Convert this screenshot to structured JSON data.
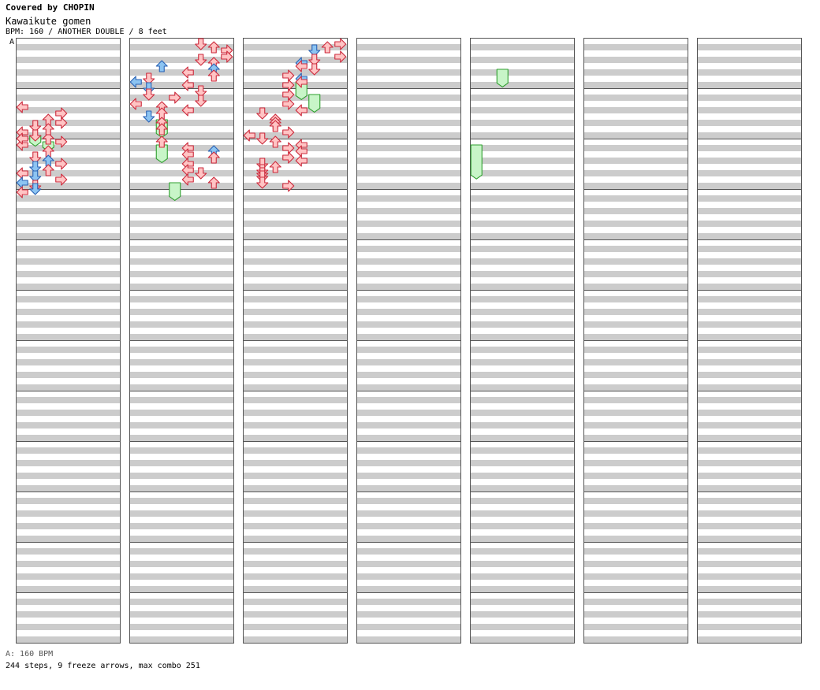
{
  "header": {
    "covered_by": "Covered by CHOPIN",
    "song_title": "Kawaikute gomen",
    "meta": "BPM: 160 / ANOTHER DOUBLE / 8 feet"
  },
  "bpm_marker": "A",
  "footer": {
    "bpm_legend": "A: 160 BPM",
    "stats": "244 steps, 9 freeze arrows, max combo 251"
  },
  "chart_data": {
    "type": "step-chart",
    "bpm": 160,
    "difficulty": "ANOTHER DOUBLE",
    "feet": 8,
    "lanes": [
      "left-1p",
      "down-1p",
      "up-1p",
      "right-1p",
      "left-2p",
      "down-2p",
      "up-2p",
      "right-2p"
    ],
    "columns": 7,
    "measures_per_column": 12,
    "beats_per_measure": 4,
    "steps": 244,
    "freeze_arrows": 9,
    "max_combo": 251,
    "notes": [
      [
        0,
        5,
        "left-1p",
        "r"
      ],
      [
        0,
        5.5,
        "right-1p",
        "r"
      ],
      [
        0,
        6,
        "up-1p",
        "r"
      ],
      [
        0,
        6.25,
        "right-1p",
        "r"
      ],
      [
        0,
        6.5,
        "down-1p",
        "r"
      ],
      [
        0,
        7.75,
        "right-1p",
        "r"
      ],
      [
        0,
        8,
        "left-1p",
        "r"
      ],
      [
        0,
        8.5,
        "up-1p",
        "r"
      ],
      [
        0,
        9,
        "down-1p",
        "r"
      ],
      [
        0,
        9.25,
        "up-1p",
        "b"
      ],
      [
        0,
        9.5,
        "right-1p",
        "r"
      ],
      [
        0,
        9.75,
        "down-1p",
        "b"
      ],
      [
        0,
        10,
        "up-1p",
        "r"
      ],
      [
        0,
        10.25,
        "left-1p",
        "r"
      ],
      [
        0,
        10.5,
        "down-1p",
        "b"
      ],
      [
        0,
        10.75,
        "right-1p",
        "r"
      ],
      [
        0,
        11,
        "left-1p",
        "b"
      ],
      [
        0,
        11.25,
        "down-1p",
        "r"
      ],
      [
        0,
        11.5,
        "down-1p",
        "b"
      ],
      [
        0,
        11.75,
        "left-1p",
        "r"
      ],
      [
        0,
        7,
        "left-1p",
        "r"
      ],
      [
        0,
        7.25,
        "down-1p",
        "r"
      ],
      [
        0,
        7.5,
        "up-1p",
        "r"
      ],
      [
        0,
        6.75,
        "up-1p",
        "r"
      ],
      [
        0,
        7.5,
        "left-1p",
        "r"
      ],
      [
        1,
        0,
        "down-2p",
        "r"
      ],
      [
        1,
        0.25,
        "up-2p",
        "r"
      ],
      [
        1,
        0.5,
        "right-2p",
        "r"
      ],
      [
        1,
        1,
        "right-2p",
        "r"
      ],
      [
        1,
        1.25,
        "down-2p",
        "r"
      ],
      [
        1,
        1.5,
        "up-2p",
        "r"
      ],
      [
        1,
        1.75,
        "up-1p",
        "b"
      ],
      [
        1,
        2,
        "up-2p",
        "b"
      ],
      [
        1,
        2.25,
        "left-2p",
        "r"
      ],
      [
        1,
        2.5,
        "up-2p",
        "r"
      ],
      [
        1,
        2.75,
        "down-1p",
        "r"
      ],
      [
        1,
        3,
        "left-1p",
        "b"
      ],
      [
        1,
        3.25,
        "left-2p",
        "r"
      ],
      [
        1,
        3.75,
        "down-2p",
        "r"
      ],
      [
        1,
        3.5,
        "down-1p",
        "b"
      ],
      [
        1,
        4,
        "down-1p",
        "r"
      ],
      [
        1,
        4.25,
        "right-1p",
        "r"
      ],
      [
        1,
        4.5,
        "down-2p",
        "r"
      ],
      [
        1,
        4.75,
        "left-1p",
        "r"
      ],
      [
        1,
        5,
        "up-1p",
        "r"
      ],
      [
        1,
        5.25,
        "left-2p",
        "r"
      ],
      [
        1,
        5.5,
        "up-1p",
        "r"
      ],
      [
        1,
        5.75,
        "down-1p",
        "b"
      ],
      [
        1,
        6.25,
        "up-1p",
        "r"
      ],
      [
        1,
        6.75,
        "up-1p",
        "r"
      ],
      [
        1,
        7.75,
        "up-1p",
        "r"
      ],
      [
        1,
        8.25,
        "left-2p",
        "r"
      ],
      [
        1,
        8.5,
        "up-2p",
        "b"
      ],
      [
        1,
        8.75,
        "left-2p",
        "r"
      ],
      [
        1,
        9,
        "up-2p",
        "r"
      ],
      [
        1,
        9.5,
        "left-2p",
        "r"
      ],
      [
        1,
        10,
        "left-2p",
        "r"
      ],
      [
        1,
        10.25,
        "down-2p",
        "r"
      ],
      [
        1,
        10.75,
        "left-2p",
        "r"
      ],
      [
        1,
        11,
        "up-2p",
        "r"
      ],
      [
        2,
        0,
        "right-2p",
        "r"
      ],
      [
        2,
        0.25,
        "up-2p",
        "r"
      ],
      [
        2,
        0.5,
        "down-2p",
        "b"
      ],
      [
        2,
        1,
        "right-2p",
        "r"
      ],
      [
        2,
        1.25,
        "down-2p",
        "r"
      ],
      [
        2,
        1.5,
        "left-2p",
        "b"
      ],
      [
        2,
        1.75,
        "left-2p",
        "r"
      ],
      [
        2,
        2,
        "down-2p",
        "r"
      ],
      [
        2,
        2.5,
        "right-1p",
        "r"
      ],
      [
        2,
        2.75,
        "left-2p",
        "b"
      ],
      [
        2,
        3,
        "left-2p",
        "r"
      ],
      [
        2,
        3.25,
        "right-1p",
        "r"
      ],
      [
        2,
        4,
        "right-1p",
        "r"
      ],
      [
        2,
        4.75,
        "right-1p",
        "r"
      ],
      [
        2,
        5.5,
        "down-1p",
        "r"
      ],
      [
        2,
        5.25,
        "left-2p",
        "r"
      ],
      [
        2,
        6,
        "up-1p",
        "r"
      ],
      [
        2,
        6.25,
        "up-1p",
        "r"
      ],
      [
        2,
        6.5,
        "up-1p",
        "r"
      ],
      [
        2,
        7,
        "right-1p",
        "r"
      ],
      [
        2,
        7.25,
        "left-1p",
        "r"
      ],
      [
        2,
        7.5,
        "down-1p",
        "r"
      ],
      [
        2,
        7.75,
        "up-1p",
        "r"
      ],
      [
        2,
        8,
        "left-2p",
        "r"
      ],
      [
        2,
        8.25,
        "right-1p",
        "r"
      ],
      [
        2,
        8.5,
        "left-2p",
        "r"
      ],
      [
        2,
        9,
        "right-1p",
        "r"
      ],
      [
        2,
        9.25,
        "left-2p",
        "r"
      ],
      [
        2,
        9.5,
        "down-1p",
        "r"
      ],
      [
        2,
        9.75,
        "up-1p",
        "r"
      ],
      [
        2,
        10,
        "down-1p",
        "r"
      ],
      [
        2,
        10.25,
        "down-1p",
        "r"
      ],
      [
        2,
        10.5,
        "down-1p",
        "r"
      ],
      [
        2,
        11,
        "down-1p",
        "r"
      ],
      [
        2,
        11.25,
        "right-1p",
        "r"
      ]
    ],
    "freezes": [
      [
        0,
        7.25,
        7.6,
        "down-1p"
      ],
      [
        0,
        7.75,
        8.0,
        "up-1p"
      ],
      [
        1,
        6.0,
        6.9,
        "up-1p"
      ],
      [
        1,
        8.0,
        8.9,
        "up-1p"
      ],
      [
        1,
        11.0,
        11.9,
        "right-1p"
      ],
      [
        2,
        3.0,
        3.9,
        "left-2p"
      ],
      [
        2,
        4.0,
        4.9,
        "down-2p"
      ],
      [
        4,
        2.0,
        2.9,
        "up-1p"
      ],
      [
        4,
        8.0,
        10.2,
        "left-1p"
      ]
    ]
  }
}
